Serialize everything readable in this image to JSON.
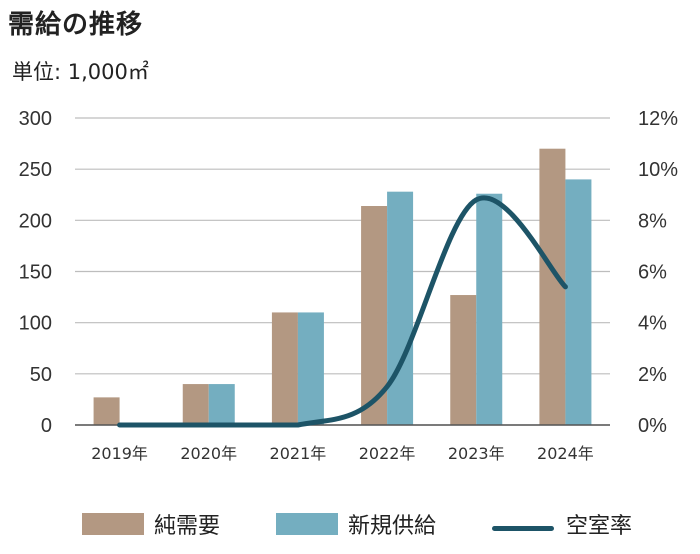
{
  "title": "需給の推移",
  "unit_label": "単位: 1,000㎡",
  "colors": {
    "demand": "#b39882",
    "supply": "#74aec0",
    "vacancy": "#1d5467",
    "grid": "#bdbdbd",
    "axis_text": "#333333"
  },
  "legend": {
    "demand": "純需要",
    "supply": "新規供給",
    "vacancy": "空室率"
  },
  "chart_data": {
    "type": "bar",
    "title": "需給の推移",
    "categories": [
      "2019年",
      "2020年",
      "2021年",
      "2022年",
      "2023年",
      "2024年"
    ],
    "series": [
      {
        "name": "純需要",
        "type": "bar",
        "axis": "left",
        "values": [
          27,
          40,
          110,
          214,
          127,
          270
        ]
      },
      {
        "name": "新規供給",
        "type": "bar",
        "axis": "left",
        "values": [
          null,
          40,
          110,
          228,
          226,
          240
        ]
      },
      {
        "name": "空室率",
        "type": "line",
        "axis": "right",
        "smooth": true,
        "values": [
          0.0,
          0.0,
          0.0,
          1.5,
          8.8,
          5.4
        ]
      }
    ],
    "ylim": [
      0,
      300
    ],
    "yticks": [
      "0",
      "50",
      "100",
      "150",
      "200",
      "250",
      "300"
    ],
    "y2lim": [
      0,
      12
    ],
    "y2ticks": [
      "0%",
      "2%",
      "4%",
      "6%",
      "8%",
      "10%",
      "12%"
    ],
    "grid": true,
    "legend_position": "bottom"
  }
}
